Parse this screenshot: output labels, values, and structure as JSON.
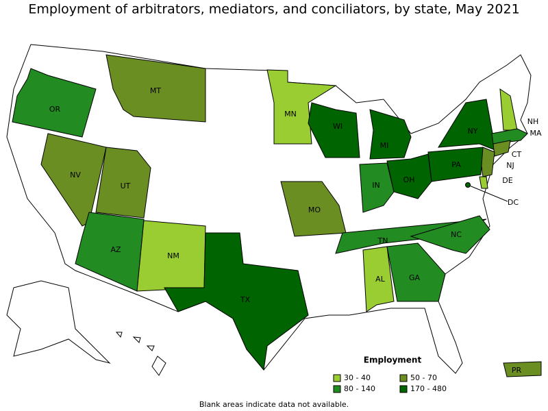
{
  "title": "Employment of arbitrators, mediators, and conciliators, by state, May 2021",
  "legend": {
    "title": "Employment",
    "bins": [
      {
        "label": "30 - 40",
        "color": "#9acd32"
      },
      {
        "label": "50 - 70",
        "color": "#6b8e23"
      },
      {
        "label": "80 - 140",
        "color": "#228b22"
      },
      {
        "label": "170 - 480",
        "color": "#006400"
      }
    ]
  },
  "states": [
    {
      "abbr": "OR",
      "bin": 2
    },
    {
      "abbr": "MT",
      "bin": 1
    },
    {
      "abbr": "MN",
      "bin": 0
    },
    {
      "abbr": "WI",
      "bin": 3
    },
    {
      "abbr": "MI",
      "bin": 3
    },
    {
      "abbr": "NY",
      "bin": 3
    },
    {
      "abbr": "NH",
      "bin": 0
    },
    {
      "abbr": "MA",
      "bin": 2
    },
    {
      "abbr": "CT",
      "bin": 1
    },
    {
      "abbr": "NJ",
      "bin": 1
    },
    {
      "abbr": "DE",
      "bin": 0
    },
    {
      "abbr": "DC",
      "bin": 3
    },
    {
      "abbr": "PA",
      "bin": 3
    },
    {
      "abbr": "OH",
      "bin": 3
    },
    {
      "abbr": "IN",
      "bin": 2
    },
    {
      "abbr": "NV",
      "bin": 1
    },
    {
      "abbr": "UT",
      "bin": 1
    },
    {
      "abbr": "MO",
      "bin": 1
    },
    {
      "abbr": "AZ",
      "bin": 2
    },
    {
      "abbr": "NM",
      "bin": 0
    },
    {
      "abbr": "TX",
      "bin": 3
    },
    {
      "abbr": "TN",
      "bin": 2
    },
    {
      "abbr": "NC",
      "bin": 2
    },
    {
      "abbr": "AL",
      "bin": 0
    },
    {
      "abbr": "GA",
      "bin": 2
    },
    {
      "abbr": "PR",
      "bin": 1
    }
  ],
  "footnote": "Blank areas indicate data not available."
}
